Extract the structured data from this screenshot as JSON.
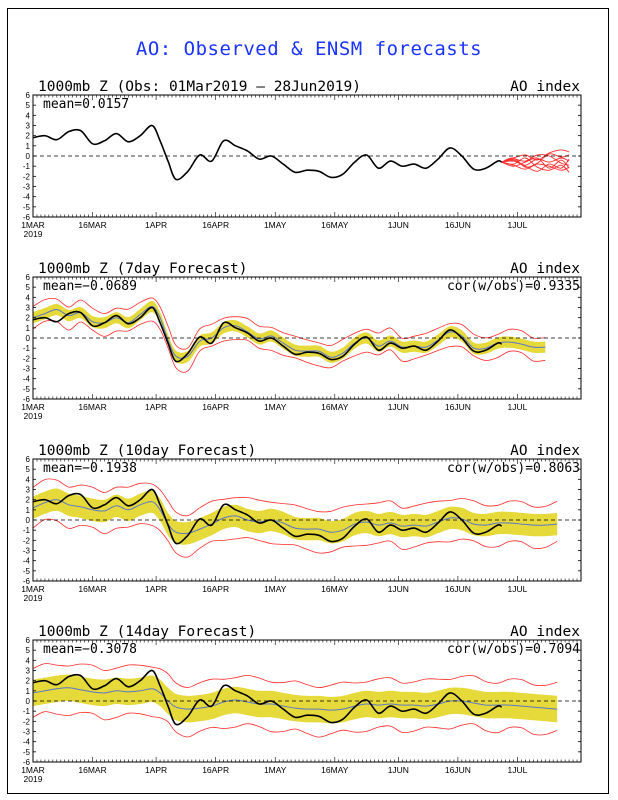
{
  "title": "AO: Observed & ENSM forecasts",
  "colors": {
    "title": "#1a33ff",
    "obs": "#000000",
    "ens_mean": "#5a78c8",
    "spread": "#e6d93a",
    "members": "#ff2a2a"
  },
  "chart_data": [
    {
      "type": "line",
      "title": "1000mb Z (Obs: 01Mar2019 – 28Jun2019)",
      "label": "AO index",
      "mean_label": "mean=0.0157",
      "ylim": [
        -6,
        6
      ],
      "yticks": [
        6,
        5,
        4,
        3,
        2,
        1,
        0,
        -1,
        -2,
        -3,
        -4,
        -5,
        -6
      ],
      "xticks": [
        "1MAR",
        "16MAR",
        "1APR",
        "16APR",
        "1MAY",
        "16MAY",
        "1JUN",
        "16JUN",
        "1JUL"
      ],
      "year": "2019",
      "series": [
        {
          "kind": "observed",
          "x": [
            0,
            3,
            6,
            9,
            12,
            15,
            18,
            21,
            24,
            27,
            30,
            32,
            34,
            36,
            39,
            42,
            45,
            48,
            51,
            54,
            57,
            60,
            63,
            66,
            69,
            72,
            75,
            78,
            81,
            84,
            87,
            90,
            93,
            96,
            99,
            102,
            105,
            108,
            111,
            114,
            117,
            118
          ],
          "y": [
            1.8,
            2.0,
            1.6,
            2.4,
            2.5,
            1.2,
            1.5,
            2.2,
            1.4,
            2.0,
            3.0,
            1.5,
            -0.5,
            -2.3,
            -1.5,
            0.1,
            -0.5,
            1.5,
            1.0,
            0.5,
            -0.3,
            0.0,
            -0.8,
            -1.6,
            -1.4,
            -1.5,
            -2.1,
            -1.8,
            -0.6,
            0.1,
            -1.2,
            -0.5,
            -1.0,
            -0.8,
            -1.2,
            -0.3,
            0.8,
            0.0,
            -1.3,
            -1.2,
            -0.5,
            -0.6
          ]
        },
        {
          "kind": "forecast_members",
          "x": [
            118,
            121,
            124,
            127,
            130,
            133,
            135
          ],
          "members": [
            [
              -0.6,
              -0.2,
              0.1,
              -0.4,
              0.3,
              0.6,
              0.4
            ],
            [
              -0.6,
              -0.5,
              -0.9,
              -0.3,
              -0.6,
              -0.2,
              -0.5
            ],
            [
              -0.6,
              -0.9,
              -1.3,
              -0.8,
              -1.0,
              -1.4,
              -1.1
            ],
            [
              -0.6,
              -0.3,
              -0.5,
              0.1,
              0.0,
              -0.7,
              -0.9
            ],
            [
              -0.6,
              -0.8,
              -0.2,
              -1.1,
              -1.4,
              -0.9,
              -1.6
            ],
            [
              -0.6,
              -0.4,
              -1.0,
              -1.5,
              -0.8,
              -1.2,
              -0.3
            ],
            [
              -0.6,
              -1.0,
              -0.6,
              -0.2,
              -1.2,
              -0.4,
              -1.2
            ],
            [
              -0.6,
              -0.2,
              -1.1,
              -0.7,
              0.2,
              -0.1,
              0.1
            ]
          ]
        }
      ]
    },
    {
      "type": "line",
      "title": "1000mb Z (7day Forecast)",
      "label": "AO index",
      "mean_label": "mean=−0.0689",
      "cor_label": "cor(w/obs)=0.9335",
      "ylim": [
        -6,
        6
      ],
      "yticks": [
        6,
        5,
        4,
        3,
        2,
        1,
        0,
        -1,
        -2,
        -3,
        -4,
        -5,
        -6
      ],
      "xticks": [
        "1MAR",
        "16MAR",
        "1APR",
        "16APR",
        "1MAY",
        "16MAY",
        "1JUN",
        "16JUN",
        "1JUL"
      ],
      "year": "2019",
      "spread": 0.55,
      "outer": 1.1,
      "forecast_x": [
        0,
        3,
        6,
        9,
        12,
        15,
        18,
        21,
        24,
        27,
        30,
        32,
        34,
        36,
        39,
        42,
        45,
        48,
        51,
        54,
        57,
        60,
        63,
        66,
        69,
        72,
        75,
        78,
        81,
        84,
        87,
        90,
        93,
        96,
        99,
        102,
        105,
        108,
        111,
        114,
        117,
        120,
        123,
        126,
        129
      ],
      "forecast_y": [
        2.0,
        2.4,
        2.8,
        2.2,
        2.5,
        1.6,
        1.5,
        2.0,
        1.5,
        2.3,
        3.1,
        2.0,
        -0.2,
        -1.8,
        -1.8,
        -0.3,
        0.0,
        1.0,
        1.2,
        0.6,
        -0.1,
        0.2,
        -0.5,
        -1.2,
        -1.3,
        -1.3,
        -1.9,
        -1.5,
        -0.5,
        0.0,
        -0.8,
        -0.3,
        -0.9,
        -0.8,
        -0.9,
        -0.2,
        0.6,
        0.2,
        -1.0,
        -1.0,
        -0.5,
        -0.4,
        -0.6,
        -0.9,
        -0.9
      ]
    },
    {
      "type": "line",
      "title": "1000mb Z (10day Forecast)",
      "label": "AO index",
      "mean_label": "mean=−0.1938",
      "cor_label": "cor(w/obs)=0.8063",
      "ylim": [
        -6,
        6
      ],
      "yticks": [
        6,
        5,
        4,
        3,
        2,
        1,
        0,
        -1,
        -2,
        -3,
        -4,
        -5,
        -6
      ],
      "xticks": [
        "1MAR",
        "16MAR",
        "1APR",
        "16APR",
        "1MAY",
        "16MAY",
        "1JUN",
        "16JUN",
        "1JUL"
      ],
      "year": "2019",
      "spread": 1.1,
      "outer": 2.0,
      "forecast_x": [
        0,
        3,
        6,
        9,
        12,
        15,
        18,
        21,
        24,
        27,
        30,
        32,
        34,
        36,
        39,
        42,
        45,
        48,
        51,
        54,
        57,
        60,
        63,
        66,
        69,
        72,
        75,
        78,
        81,
        84,
        87,
        90,
        93,
        96,
        99,
        102,
        105,
        108,
        111,
        114,
        117,
        120,
        123,
        126,
        129,
        132
      ],
      "forecast_y": [
        1.2,
        1.7,
        2.0,
        1.5,
        1.3,
        1.0,
        0.9,
        1.4,
        1.0,
        1.5,
        1.8,
        1.0,
        -0.4,
        -1.2,
        -1.3,
        -0.9,
        -0.4,
        0.2,
        0.4,
        0.0,
        -0.2,
        0.0,
        -0.3,
        -0.8,
        -0.9,
        -0.9,
        -1.2,
        -1.0,
        -0.4,
        -0.2,
        -0.5,
        -0.3,
        -0.6,
        -0.5,
        -0.6,
        -0.2,
        0.2,
        0.1,
        -0.4,
        -0.5,
        -0.3,
        -0.3,
        -0.4,
        -0.5,
        -0.5,
        -0.4
      ]
    },
    {
      "type": "line",
      "title": "1000mb Z (14day Forecast)",
      "label": "AO index",
      "mean_label": "mean=−0.3078",
      "cor_label": "cor(w/obs)=0.7094",
      "ylim": [
        -6,
        6
      ],
      "yticks": [
        6,
        5,
        4,
        3,
        2,
        1,
        0,
        -1,
        -2,
        -3,
        -4,
        -5,
        -6
      ],
      "xticks": [
        "1MAR",
        "16MAR",
        "1APR",
        "16APR",
        "1MAY",
        "16MAY",
        "1JUN",
        "16JUN",
        "1JUL"
      ],
      "year": "2019",
      "spread": 1.3,
      "outer": 2.4,
      "forecast_x": [
        0,
        3,
        6,
        9,
        12,
        15,
        18,
        21,
        24,
        27,
        30,
        32,
        34,
        36,
        39,
        42,
        45,
        48,
        51,
        54,
        57,
        60,
        63,
        66,
        69,
        72,
        75,
        78,
        81,
        84,
        87,
        90,
        93,
        96,
        99,
        102,
        105,
        108,
        111,
        114,
        117,
        120,
        123,
        126,
        129,
        132
      ],
      "forecast_y": [
        0.8,
        1.0,
        1.2,
        1.3,
        1.1,
        0.9,
        0.8,
        1.0,
        0.9,
        1.0,
        1.2,
        0.8,
        0.0,
        -0.6,
        -0.8,
        -0.7,
        -0.5,
        -0.1,
        0.1,
        -0.1,
        -0.3,
        -0.3,
        -0.5,
        -0.7,
        -0.8,
        -0.8,
        -0.9,
        -0.8,
        -0.5,
        -0.3,
        -0.4,
        -0.3,
        -0.4,
        -0.4,
        -0.5,
        -0.3,
        0.0,
        0.0,
        -0.2,
        -0.4,
        -0.4,
        -0.4,
        -0.5,
        -0.6,
        -0.7,
        -0.8
      ]
    }
  ]
}
